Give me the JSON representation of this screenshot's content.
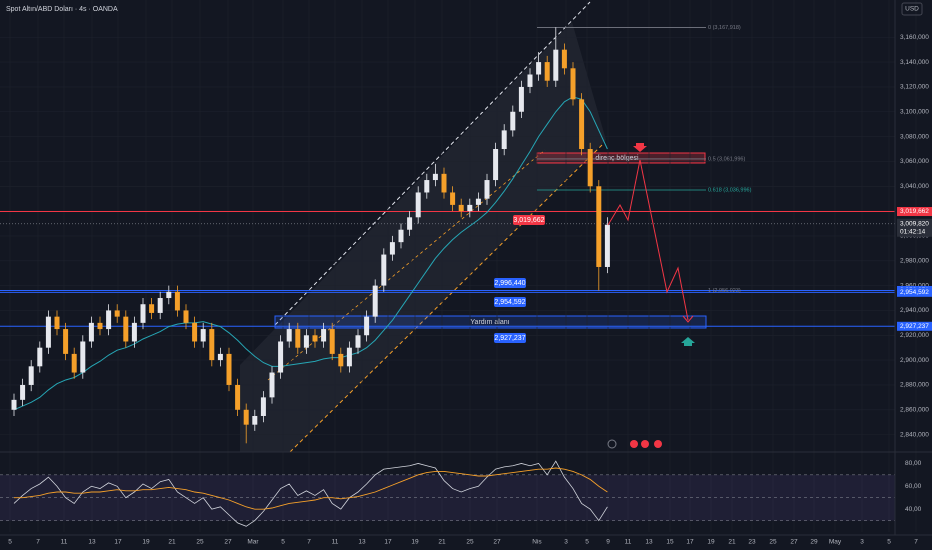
{
  "chart_data": {
    "type": "candlestick",
    "title": "Spot Altın/ABD Doları · 4s · OANDA",
    "currency": "USD",
    "up_color": "#e6e8ee",
    "down_color": "#f5a02a",
    "open": [
      2860,
      2868,
      2880,
      2895,
      2910,
      2935,
      2925,
      2905,
      2890,
      2915,
      2930,
      2925,
      2940,
      2935,
      2915,
      2930,
      2945,
      2938,
      2950,
      2955,
      2940,
      2930,
      2915,
      2925,
      2900,
      2905,
      2880,
      2860,
      2848,
      2855,
      2870,
      2890,
      2915,
      2925,
      2910,
      2920,
      2915,
      2925,
      2905,
      2895,
      2910,
      2920,
      2935,
      2960,
      2985,
      2995,
      3005,
      3015,
      3035,
      3045,
      3050,
      3035,
      3025,
      3020,
      3025,
      3030,
      3045,
      3070,
      3085,
      3100,
      3120,
      3130,
      3140,
      3125,
      3150,
      3135,
      3110,
      3070,
      3040,
      2975
    ],
    "high": [
      2873,
      2885,
      2900,
      2915,
      2940,
      2940,
      2930,
      2910,
      2920,
      2935,
      2935,
      2945,
      2945,
      2940,
      2935,
      2950,
      2950,
      2955,
      2960,
      2960,
      2945,
      2935,
      2930,
      2930,
      2910,
      2910,
      2885,
      2865,
      2860,
      2875,
      2895,
      2920,
      2930,
      2930,
      2925,
      2925,
      2930,
      2930,
      2910,
      2915,
      2925,
      2940,
      2965,
      2990,
      3000,
      3010,
      3020,
      3040,
      3050,
      3058,
      3055,
      3040,
      3030,
      3030,
      3035,
      3050,
      3075,
      3090,
      3105,
      3125,
      3135,
      3148,
      3145,
      3168,
      3155,
      3140,
      3115,
      3075,
      3045,
      3015
    ],
    "low": [
      2855,
      2863,
      2875,
      2890,
      2905,
      2920,
      2900,
      2885,
      2885,
      2910,
      2920,
      2920,
      2930,
      2910,
      2910,
      2925,
      2933,
      2933,
      2945,
      2935,
      2925,
      2910,
      2910,
      2895,
      2895,
      2875,
      2855,
      2833,
      2843,
      2850,
      2865,
      2885,
      2910,
      2905,
      2905,
      2910,
      2910,
      2900,
      2890,
      2890,
      2905,
      2915,
      2930,
      2955,
      2980,
      2990,
      3000,
      3010,
      3030,
      3040,
      3030,
      3020,
      3015,
      3015,
      3020,
      3025,
      3040,
      3065,
      3080,
      3095,
      3115,
      3125,
      3120,
      3120,
      3130,
      3105,
      3065,
      3035,
      2956,
      2970
    ],
    "close": [
      2868,
      2880,
      2895,
      2910,
      2935,
      2925,
      2905,
      2890,
      2915,
      2930,
      2925,
      2940,
      2935,
      2915,
      2930,
      2945,
      2938,
      2950,
      2955,
      2940,
      2930,
      2915,
      2925,
      2900,
      2905,
      2880,
      2860,
      2848,
      2855,
      2870,
      2890,
      2915,
      2925,
      2910,
      2920,
      2915,
      2925,
      2905,
      2895,
      2910,
      2920,
      2935,
      2960,
      2985,
      2995,
      3005,
      3015,
      3035,
      3045,
      3050,
      3035,
      3025,
      3020,
      3025,
      3030,
      3045,
      3070,
      3085,
      3100,
      3120,
      3130,
      3140,
      3125,
      3150,
      3135,
      3110,
      3070,
      3040,
      2975,
      3009
    ],
    "ma": {
      "color": "#26a6b5",
      "values": [
        2860,
        2863,
        2866,
        2870,
        2876,
        2881,
        2884,
        2886,
        2890,
        2895,
        2899,
        2904,
        2908,
        2910,
        2913,
        2917,
        2920,
        2923,
        2927,
        2929,
        2930,
        2930,
        2931,
        2929,
        2927,
        2922,
        2916,
        2909,
        2903,
        2898,
        2895,
        2895,
        2896,
        2897,
        2898,
        2899,
        2901,
        2902,
        2902,
        2904,
        2906,
        2910,
        2916,
        2924,
        2932,
        2942,
        2952,
        2962,
        2972,
        2982,
        2990,
        2997,
        3003,
        3008,
        3013,
        3019,
        3027,
        3036,
        3046,
        3057,
        3068,
        3080,
        3090,
        3100,
        3108,
        3112,
        3110,
        3100,
        3085,
        3070
      ]
    },
    "ylim": [
      2826,
      3190
    ],
    "yticks": [
      {
        "value": 2840,
        "label": "2,840,000"
      },
      {
        "value": 2860,
        "label": "2,860,000"
      },
      {
        "value": 2880,
        "label": "2,880,000"
      },
      {
        "value": 2900,
        "label": "2,900,000"
      },
      {
        "value": 2920,
        "label": "2,920,000"
      },
      {
        "value": 2940,
        "label": "2,940,000"
      },
      {
        "value": 2960,
        "label": "2,960,000"
      },
      {
        "value": 2980,
        "label": "2,980,000"
      },
      {
        "value": 3000,
        "label": "3,000,000"
      },
      {
        "value": 3020,
        "label": "3,020,000"
      },
      {
        "value": 3040,
        "label": "3,040,000"
      },
      {
        "value": 3060,
        "label": "3,060,000"
      },
      {
        "value": 3080,
        "label": "3,080,000"
      },
      {
        "value": 3100,
        "label": "3,100,000"
      },
      {
        "value": 3120,
        "label": "3,120,000"
      },
      {
        "value": 3140,
        "label": "3,140,000"
      },
      {
        "value": 3160,
        "label": "3,160,000"
      }
    ],
    "xticks": [
      "5",
      "7",
      "11",
      "13",
      "17",
      "19",
      "21",
      "25",
      "27",
      "Mar",
      "5",
      "7",
      "11",
      "13",
      "17",
      "19",
      "21",
      "25",
      "27",
      "Nis",
      "3",
      "5",
      "9",
      "11",
      "13",
      "15",
      "17",
      "19",
      "21",
      "23",
      "25",
      "27",
      "29",
      "May",
      "3",
      "5",
      "7"
    ],
    "price_lines": [
      {
        "value": 3019.662,
        "label": "3,019,662",
        "color": "#f23645"
      },
      {
        "value": 2956.071,
        "label": "2,956,071",
        "color": "#2962ff"
      },
      {
        "value": 2954.592,
        "label": "2,954,592",
        "color": "#2962ff"
      },
      {
        "value": 2927.237,
        "label": "2,927,237",
        "color": "#2962ff"
      }
    ],
    "last_price": {
      "value": 3009.82,
      "label": "3,009,820",
      "countdown": "01:42:14"
    },
    "fib": [
      {
        "value": 3167.918,
        "label": "0 (3,167,918)",
        "color": "#787b86"
      },
      {
        "value": 3061.996,
        "label": "0.5 (3,061,996)",
        "color": "#787b86"
      },
      {
        "value": 3036.996,
        "label": "0.618 (3,036,996)",
        "color": "#26a69a"
      },
      {
        "value": 2956.023,
        "label": "1 (2,956,023)",
        "color": "#787b86"
      }
    ],
    "zone_labels": [
      "direnç bölgesi",
      "Yardım alanı"
    ],
    "tags": [
      "3,019,662",
      "2,996,440",
      "2,954,592",
      "2,927,237"
    ],
    "rsi": {
      "color": "#d1d4dc",
      "values": [
        45,
        52,
        58,
        62,
        68,
        60,
        50,
        45,
        55,
        60,
        58,
        63,
        60,
        50,
        55,
        62,
        58,
        64,
        66,
        55,
        50,
        45,
        50,
        40,
        42,
        35,
        28,
        25,
        30,
        38,
        48,
        58,
        62,
        52,
        56,
        52,
        57,
        45,
        40,
        50,
        55,
        62,
        70,
        75,
        76,
        77,
        78,
        80,
        78,
        76,
        65,
        58,
        55,
        58,
        60,
        68,
        75,
        77,
        78,
        80,
        78,
        80,
        70,
        82,
        68,
        58,
        45,
        40,
        30,
        42
      ]
    },
    "rsi_ma": {
      "color": "#f5a02a",
      "values": [
        50,
        50,
        51,
        52,
        54,
        55,
        55,
        54,
        54,
        55,
        55,
        56,
        57,
        56,
        56,
        57,
        57,
        58,
        59,
        58,
        57,
        55,
        54,
        52,
        50,
        48,
        45,
        42,
        40,
        40,
        41,
        43,
        45,
        46,
        47,
        48,
        50,
        50,
        49,
        50,
        51,
        53,
        55,
        58,
        61,
        64,
        67,
        70,
        72,
        73,
        73,
        72,
        71,
        70,
        69,
        69,
        70,
        71,
        72,
        73,
        74,
        75,
        75,
        76,
        75,
        73,
        70,
        66,
        60,
        55
      ]
    },
    "rsi_ylim": [
      20,
      90
    ],
    "rsi_yticks": [
      {
        "value": 40,
        "label": "40,00"
      },
      {
        "value": 60,
        "label": "60,00"
      },
      {
        "value": 80,
        "label": "80,00"
      }
    ],
    "rsi_bands": [
      30,
      50,
      70
    ]
  }
}
